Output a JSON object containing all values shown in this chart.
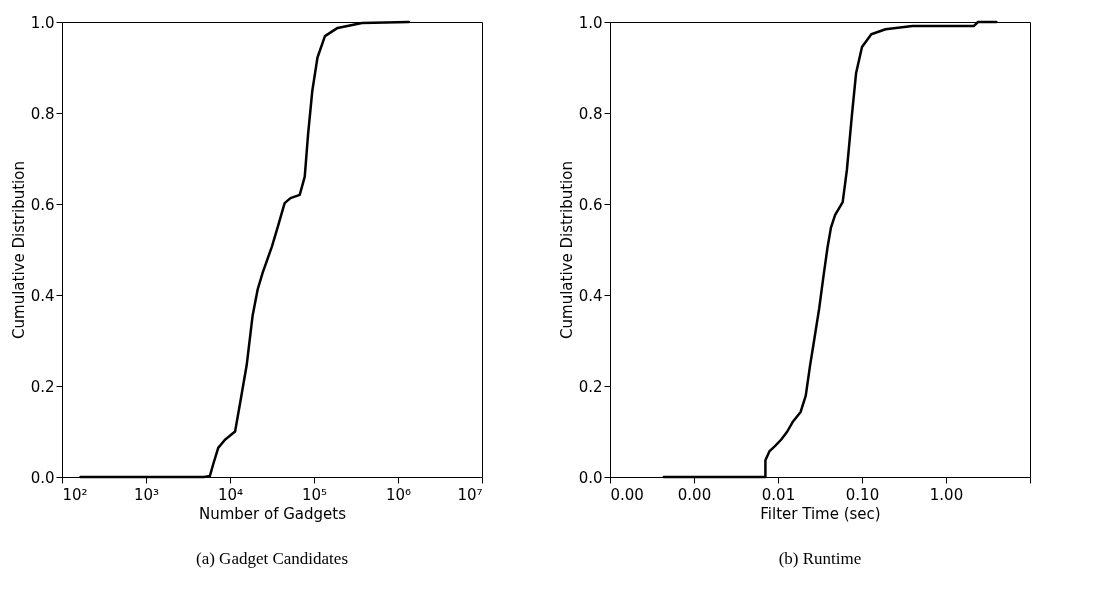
{
  "chart_data": [
    {
      "type": "line",
      "title": "(a) Gadget Candidates",
      "xlabel": "Number of Gadgets",
      "ylabel": "Cumulative Distribution",
      "log": "x",
      "grid": false,
      "marker": "none",
      "line_style": "solid",
      "xlim": [
        100,
        10000000
      ],
      "xticks": [
        {
          "value": 100,
          "label": "10²"
        },
        {
          "value": 1000,
          "label": "10³"
        },
        {
          "value": 10000,
          "label": "10⁴"
        },
        {
          "value": 100000,
          "label": "10⁵"
        },
        {
          "value": 1000000,
          "label": "10⁶"
        },
        {
          "value": 10000000,
          "label": "10⁷"
        }
      ],
      "ylim": [
        0,
        1
      ],
      "yticks": [
        {
          "value": 0,
          "label": "0.0"
        },
        {
          "value": 0.2,
          "label": "0.2"
        },
        {
          "value": 0.4,
          "label": "0.4"
        },
        {
          "value": 0.6,
          "label": "0.6"
        },
        {
          "value": 0.8,
          "label": "0.8"
        },
        {
          "value": 1,
          "label": "1.0"
        }
      ],
      "series": [
        {
          "color": "#000000",
          "x": [
            166,
            4900,
            5750,
            6310,
            7240,
            8710,
            11500,
            13500,
            15800,
            18600,
            21400,
            24500,
            31600,
            37200,
            44700,
            52500,
            67600,
            77600,
            85100,
            95500,
            110000,
            135000,
            191000,
            372000,
            1350000
          ],
          "values": [
            0,
            0,
            0.002,
            0.028,
            0.064,
            0.082,
            0.1,
            0.173,
            0.246,
            0.355,
            0.413,
            0.449,
            0.507,
            0.551,
            0.602,
            0.613,
            0.62,
            0.66,
            0.754,
            0.849,
            0.922,
            0.969,
            0.987,
            0.998,
            1.0
          ]
        }
      ]
    },
    {
      "type": "line",
      "title": "(b) Runtime",
      "xlabel": "Filter Time (sec)",
      "ylabel": "Cumulative Distribution",
      "log": "x",
      "grid": false,
      "marker": "none",
      "line_style": "solid",
      "xlim": [
        0.0001,
        10
      ],
      "xticks": [
        {
          "value": 0.0001,
          "label": "0.00"
        },
        {
          "value": 0.001,
          "label": "0.00"
        },
        {
          "value": 0.01,
          "label": "0.01"
        },
        {
          "value": 0.1,
          "label": "0.10"
        },
        {
          "value": 1,
          "label": "1.00"
        },
        {
          "value": 10,
          "label": null
        }
      ],
      "ylim": [
        0,
        1
      ],
      "yticks": [
        {
          "value": 0,
          "label": "0.0"
        },
        {
          "value": 0.2,
          "label": "0.2"
        },
        {
          "value": 0.4,
          "label": "0.4"
        },
        {
          "value": 0.6,
          "label": "0.6"
        },
        {
          "value": 0.8,
          "label": "0.8"
        },
        {
          "value": 1,
          "label": "1.0"
        }
      ],
      "series": [
        {
          "color": "#000000",
          "x": [
            0.000437,
            0.00603,
            0.00708,
            0.00708,
            0.00794,
            0.00933,
            0.011,
            0.0129,
            0.0151,
            0.0186,
            0.0214,
            0.024,
            0.0269,
            0.0309,
            0.0347,
            0.0389,
            0.0427,
            0.0479,
            0.0589,
            0.0661,
            0.0759,
            0.0851,
            0.1,
            0.129,
            0.191,
            0.398,
            2.14,
            2.4,
            3.98
          ],
          "values": [
            0,
            0,
            0,
            0.037,
            0.057,
            0.069,
            0.083,
            0.1,
            0.122,
            0.143,
            0.179,
            0.243,
            0.3,
            0.37,
            0.44,
            0.505,
            0.548,
            0.576,
            0.604,
            0.675,
            0.796,
            0.888,
            0.945,
            0.973,
            0.984,
            0.991,
            0.991,
            1.0,
            1.0
          ]
        }
      ]
    }
  ]
}
